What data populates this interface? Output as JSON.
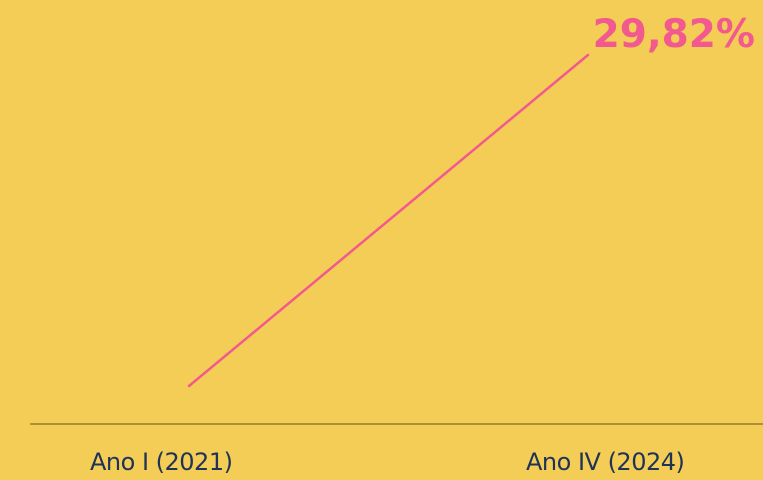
{
  "chart_data": {
    "type": "line",
    "categories": [
      "Ano I (2021)",
      "Ano IV (2024)"
    ],
    "series": [
      {
        "values": [
          0,
          29.82
        ],
        "end_label": "29,82%"
      }
    ],
    "title": "",
    "xlabel": "",
    "ylabel": "",
    "grid": false,
    "legend": "none"
  },
  "colors": {
    "background": "#f4cd56",
    "line": "#f2598f",
    "label": "#f2598f",
    "axis": "#b08e3a",
    "tick_text": "#1f3357"
  }
}
